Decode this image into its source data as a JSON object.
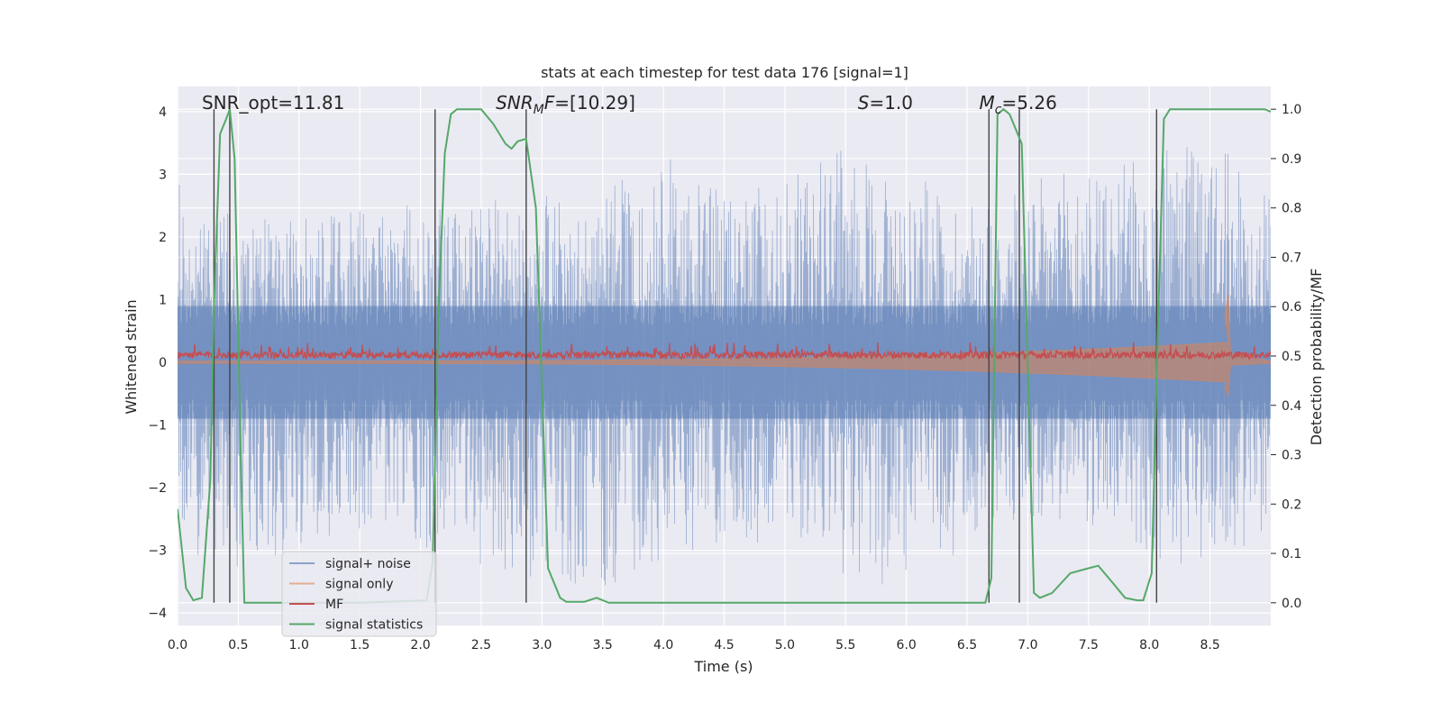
{
  "chart_data": {
    "type": "line",
    "title": "stats at each timestep for test data 176 [signal=1]",
    "xlabel": "Time (s)",
    "ylabel": "Whitened strain",
    "y2label": "Detection probability/MF",
    "xlim": [
      0,
      9.0
    ],
    "ylim": [
      -4.2,
      4.4
    ],
    "y2lim": [
      -0.046,
      1.046
    ],
    "x_ticks": [
      0.0,
      0.5,
      1.0,
      1.5,
      2.0,
      2.5,
      3.0,
      3.5,
      4.0,
      4.5,
      5.0,
      5.5,
      6.0,
      6.5,
      7.0,
      7.5,
      8.0,
      8.5
    ],
    "x_tick_labels": [
      "0.0",
      "0.5",
      "1.0",
      "1.5",
      "2.0",
      "2.5",
      "3.0",
      "3.5",
      "4.0",
      "4.5",
      "5.0",
      "5.5",
      "6.0",
      "6.5",
      "7.0",
      "7.5",
      "8.0",
      "8.5"
    ],
    "y_ticks": [
      4,
      3,
      2,
      1,
      0,
      -1,
      -2,
      -3,
      -4
    ],
    "y_tick_labels": [
      "4",
      "3",
      "2",
      "1",
      "0",
      "−1",
      "−2",
      "−3",
      "−4"
    ],
    "y2_ticks": [
      1.0,
      0.9,
      0.8,
      0.7,
      0.6,
      0.5,
      0.4,
      0.3,
      0.2,
      0.1,
      0.0
    ],
    "y2_tick_labels": [
      "1.0",
      "0.9",
      "0.8",
      "0.7",
      "0.6",
      "0.5",
      "0.4",
      "0.3",
      "0.2",
      "0.1",
      "0.0"
    ],
    "grid": true,
    "legend_position": "lower-left",
    "colors": {
      "plot_background": "#eaeaf2",
      "grid": "#ffffff",
      "signal_noise": "#4c72b0",
      "signal_only": "#dd8452",
      "mf": "#c44e52",
      "signal_statistics": "#55a868",
      "marker_lines": "#444444"
    },
    "annotations": [
      {
        "name": "snr-opt",
        "x": 0.2,
        "plain": "SNR_opt=11.81"
      },
      {
        "name": "snr-mf",
        "x": 2.62,
        "italic": "SNR",
        "sub": "M",
        "italic2": "F",
        "rest": "=[10.29]"
      },
      {
        "name": "s-value",
        "x": 5.6,
        "italic": "S",
        "rest": "=1.0"
      },
      {
        "name": "mc-value",
        "x": 6.6,
        "italic": "M",
        "sub": "c",
        "rest": "=5.26"
      }
    ],
    "vertical_lines_x": [
      0.3,
      0.43,
      2.12,
      2.87,
      6.68,
      6.93,
      8.06
    ],
    "series": [
      {
        "name": "signal+ noise",
        "kind": "noise-band",
        "envelope_upper": [
          [
            0.0,
            3.15
          ],
          [
            0.1,
            2.1
          ],
          [
            0.4,
            2.4
          ],
          [
            1.0,
            2.3
          ],
          [
            1.7,
            2.6
          ],
          [
            2.1,
            2.5
          ],
          [
            2.9,
            2.7
          ],
          [
            3.4,
            2.6
          ],
          [
            4.02,
            3.35
          ],
          [
            4.5,
            2.7
          ],
          [
            5.1,
            3.05
          ],
          [
            5.5,
            3.45
          ],
          [
            6.5,
            2.6
          ],
          [
            7.3,
            3.05
          ],
          [
            7.7,
            3.15
          ],
          [
            8.0,
            3.3
          ],
          [
            8.2,
            3.55
          ],
          [
            8.9,
            3.2
          ],
          [
            9.0,
            2.9
          ]
        ],
        "envelope_lower": [
          [
            0.0,
            -2.6
          ],
          [
            0.1,
            -3.0
          ],
          [
            0.3,
            -3.25
          ],
          [
            0.6,
            -3.3
          ],
          [
            1.0,
            -2.9
          ],
          [
            1.5,
            -2.7
          ],
          [
            2.3,
            -3.1
          ],
          [
            2.9,
            -3.55
          ],
          [
            3.45,
            -3.7
          ],
          [
            4.0,
            -3.15
          ],
          [
            4.5,
            -2.9
          ],
          [
            5.0,
            -2.9
          ],
          [
            5.5,
            -3.4
          ],
          [
            5.8,
            -3.55
          ],
          [
            6.5,
            -3.0
          ],
          [
            7.0,
            -2.5
          ],
          [
            7.6,
            -2.65
          ],
          [
            8.2,
            -3.25
          ],
          [
            8.9,
            -2.9
          ],
          [
            9.0,
            -2.4
          ]
        ]
      },
      {
        "name": "signal only",
        "kind": "chirp",
        "start_amplitude": 0.02,
        "merger_time": 8.65,
        "merger_amplitude": 1.1,
        "merger_min": -0.55
      },
      {
        "name": "MF",
        "kind": "mf-trace",
        "level": 0.1,
        "spread": 0.12
      },
      {
        "name": "signal statistics",
        "kind": "line",
        "axis": "right",
        "x": [
          0.0,
          0.07,
          0.13,
          0.2,
          0.27,
          0.3,
          0.35,
          0.4,
          0.43,
          0.47,
          0.52,
          0.55,
          1.5,
          2.05,
          2.1,
          2.15,
          2.2,
          2.25,
          2.3,
          2.5,
          2.6,
          2.7,
          2.75,
          2.8,
          2.87,
          2.95,
          3.05,
          3.15,
          3.2,
          3.35,
          3.45,
          3.55,
          6.5,
          6.65,
          6.7,
          6.75,
          6.8,
          6.85,
          6.95,
          7.05,
          7.1,
          7.2,
          7.35,
          7.5,
          7.58,
          7.7,
          7.8,
          7.9,
          7.95,
          8.02,
          8.07,
          8.12,
          8.17,
          8.3,
          8.95,
          9.0
        ],
        "y": [
          0.19,
          0.03,
          0.005,
          0.01,
          0.25,
          0.6,
          0.95,
          0.98,
          1.0,
          0.9,
          0.3,
          0.0,
          0.0,
          0.005,
          0.08,
          0.6,
          0.91,
          0.99,
          1.0,
          1.0,
          0.97,
          0.93,
          0.92,
          0.935,
          0.94,
          0.8,
          0.07,
          0.01,
          0.002,
          0.002,
          0.01,
          0.0,
          0.0,
          0.0,
          0.05,
          0.99,
          1.0,
          0.99,
          0.93,
          0.02,
          0.01,
          0.02,
          0.06,
          0.07,
          0.075,
          0.04,
          0.01,
          0.005,
          0.005,
          0.06,
          0.55,
          0.98,
          1.0,
          1.0,
          1.0,
          0.995
        ]
      }
    ]
  }
}
